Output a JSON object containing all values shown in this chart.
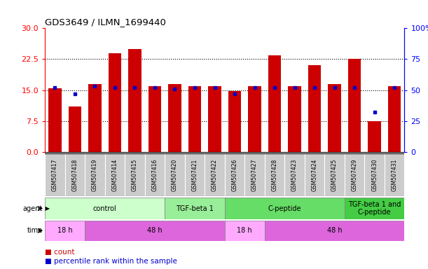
{
  "title": "GDS3649 / ILMN_1699440",
  "samples": [
    "GSM507417",
    "GSM507418",
    "GSM507419",
    "GSM507414",
    "GSM507415",
    "GSM507416",
    "GSM507420",
    "GSM507421",
    "GSM507422",
    "GSM507426",
    "GSM507427",
    "GSM507428",
    "GSM507423",
    "GSM507424",
    "GSM507425",
    "GSM507429",
    "GSM507430",
    "GSM507431"
  ],
  "count_values": [
    15.5,
    11.0,
    16.5,
    24.0,
    25.0,
    16.0,
    16.5,
    16.0,
    16.0,
    14.8,
    16.0,
    23.5,
    16.0,
    21.0,
    16.5,
    22.5,
    7.5,
    16.0
  ],
  "percentile_values": [
    52,
    47,
    53,
    52,
    52,
    52,
    51,
    52,
    52,
    47,
    52,
    52,
    52,
    52,
    52,
    52,
    32,
    52
  ],
  "left_ylim": [
    0,
    30
  ],
  "left_yticks": [
    0,
    7.5,
    15,
    22.5,
    30
  ],
  "right_ylim": [
    0,
    100
  ],
  "right_yticks": [
    0,
    25,
    50,
    75,
    100
  ],
  "bar_color": "#cc0000",
  "dot_color": "#0000cc",
  "agent_groups": [
    {
      "label": "control",
      "start": 0,
      "end": 6,
      "color": "#ccffcc"
    },
    {
      "label": "TGF-beta 1",
      "start": 6,
      "end": 9,
      "color": "#99ee99"
    },
    {
      "label": "C-peptide",
      "start": 9,
      "end": 15,
      "color": "#66dd66"
    },
    {
      "label": "TGF-beta 1 and\nC-peptide",
      "start": 15,
      "end": 18,
      "color": "#44cc44"
    }
  ],
  "time_groups": [
    {
      "label": "18 h",
      "start": 0,
      "end": 2,
      "color": "#ffaaff"
    },
    {
      "label": "48 h",
      "start": 2,
      "end": 9,
      "color": "#dd66dd"
    },
    {
      "label": "18 h",
      "start": 9,
      "end": 11,
      "color": "#ffaaff"
    },
    {
      "label": "48 h",
      "start": 11,
      "end": 18,
      "color": "#dd66dd"
    }
  ],
  "legend_count_color": "#cc0000",
  "legend_dot_color": "#0000cc",
  "tick_bg_color": "#cccccc"
}
